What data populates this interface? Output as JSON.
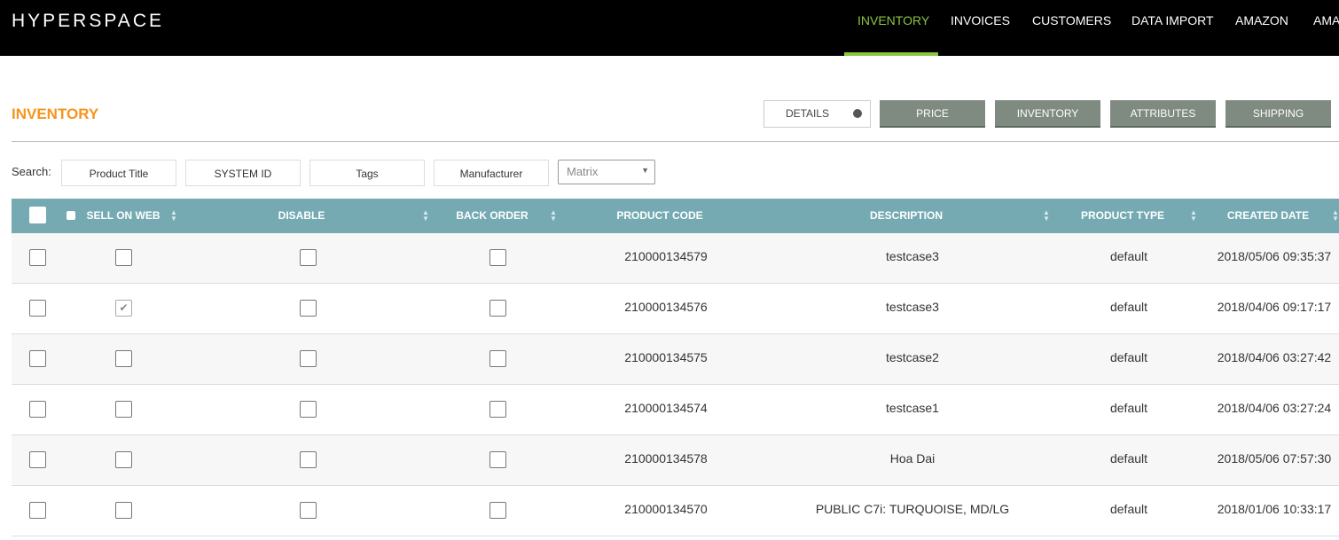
{
  "header": {
    "logo": "HYPERSPACE",
    "nav": [
      {
        "label": "INVENTORY",
        "active": true
      },
      {
        "label": "INVOICES",
        "active": false
      },
      {
        "label": "CUSTOMERS",
        "active": false
      },
      {
        "label": "DATA IMPORT",
        "active": false
      },
      {
        "label": "AMAZON",
        "active": false
      },
      {
        "label": "AMA",
        "active": false
      }
    ]
  },
  "page": {
    "title": "INVENTORY",
    "tabs": [
      "DETAILS",
      "PRICE",
      "INVENTORY",
      "ATTRIBUTES",
      "SHIPPING"
    ]
  },
  "search": {
    "label": "Search:",
    "fields": [
      "Product Title",
      "SYSTEM ID",
      "Tags",
      "Manufacturer"
    ],
    "select": "Matrix"
  },
  "table": {
    "columns": [
      {
        "label": "SELL ON WEB",
        "sortable": true
      },
      {
        "label": "DISABLE",
        "sortable": true
      },
      {
        "label": "BACK ORDER",
        "sortable": true
      },
      {
        "label": "PRODUCT CODE",
        "sortable": false
      },
      {
        "label": "DESCRIPTION",
        "sortable": true
      },
      {
        "label": "PRODUCT TYPE",
        "sortable": true
      },
      {
        "label": "CREATED DATE",
        "sortable": true
      }
    ],
    "rows": [
      {
        "sell_on_web": false,
        "code": "210000134579",
        "description": "testcase3",
        "type": "default",
        "created": "2018/05/06 09:35:37"
      },
      {
        "sell_on_web": true,
        "code": "210000134576",
        "description": "testcase3",
        "type": "default",
        "created": "2018/04/06 09:17:17"
      },
      {
        "sell_on_web": false,
        "code": "210000134575",
        "description": "testcase2",
        "type": "default",
        "created": "2018/04/06 03:27:42"
      },
      {
        "sell_on_web": false,
        "code": "210000134574",
        "description": "testcase1",
        "type": "default",
        "created": "2018/04/06 03:27:24"
      },
      {
        "sell_on_web": false,
        "code": "210000134578",
        "description": "Hoa Dai",
        "type": "default",
        "created": "2018/05/06 07:57:30"
      },
      {
        "sell_on_web": false,
        "code": "210000134570",
        "description": "PUBLIC C7i: TURQUOISE, MD/LG",
        "type": "default",
        "created": "2018/01/06 10:33:17"
      }
    ]
  }
}
